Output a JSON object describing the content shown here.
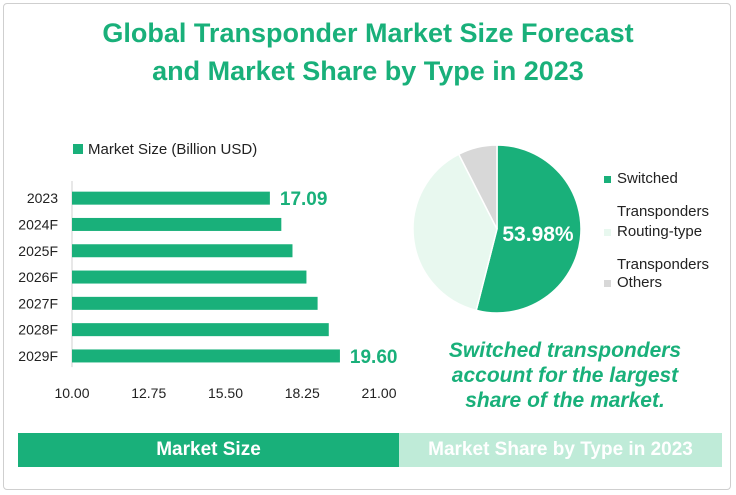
{
  "title_line1": "Global Transponder Market Size Forecast",
  "title_line2": "and Market Share by Type in 2023",
  "callout_line1": "Switched transponders",
  "callout_line2": "account for the largest",
  "callout_line3": "share of the market.",
  "footer": {
    "left_label": "Market Size",
    "right_label": "Market Share by Type in 2023"
  },
  "colors": {
    "brand_green": "#19b07a",
    "light_green": "#e8f8ef",
    "gray": "#d8d8d8",
    "footer_light": "#bfebd8"
  },
  "chart_data": [
    {
      "type": "bar",
      "orientation": "horizontal",
      "legend": "Market Size (Billion USD)",
      "legend_position": "top-left",
      "categories": [
        "2023",
        "2024F",
        "2025F",
        "2026F",
        "2027F",
        "2028F",
        "2029F"
      ],
      "values": [
        17.09,
        17.5,
        17.9,
        18.4,
        18.8,
        19.2,
        19.6
      ],
      "data_labels": [
        {
          "category": "2023",
          "text": "17.09"
        },
        {
          "category": "2029F",
          "text": "19.60"
        }
      ],
      "x_ticks": [
        "10.00",
        "12.75",
        "15.50",
        "18.25",
        "21.00"
      ],
      "xlim": [
        10.0,
        21.0
      ],
      "grid": false
    },
    {
      "type": "pie",
      "legend_position": "right",
      "slices": [
        {
          "label": "Switched Transponders",
          "value": 53.98,
          "color": "#19b07a",
          "label_text": "53.98%"
        },
        {
          "label": "Routing-type Transponders",
          "value": 38.5,
          "color": "#e8f8ef"
        },
        {
          "label": "Others",
          "value": 7.52,
          "color": "#d8d8d8"
        }
      ],
      "legend_lines": [
        {
          "line1": "Switched",
          "line2": "Transponders",
          "color": "#19b07a"
        },
        {
          "line1": "Routing-type",
          "line2": "Transponders",
          "color": "#e8f8ef"
        },
        {
          "line1": "Others",
          "line2": "",
          "color": "#d8d8d8"
        }
      ]
    }
  ]
}
